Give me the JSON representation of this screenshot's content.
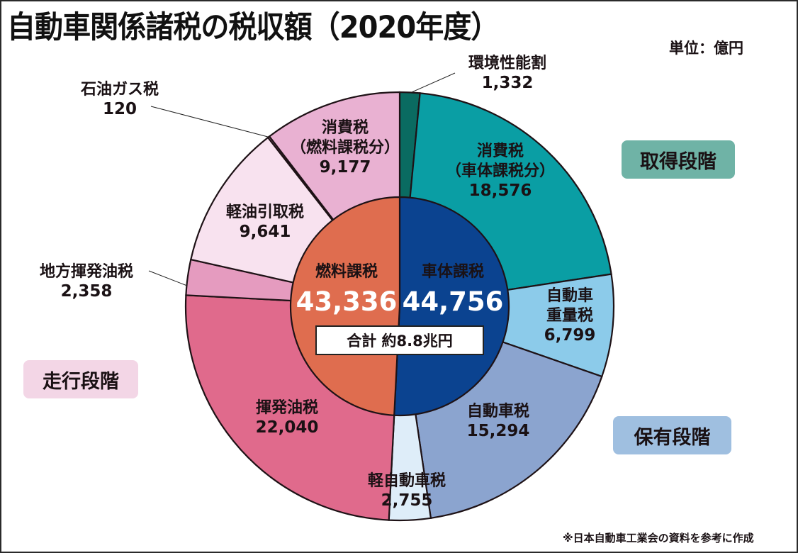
{
  "title": "自動車関係諸税の税収額（2020年度）",
  "unit": "単位：億円",
  "note": "※日本自動車工業会の資料を参考に作成",
  "stages": {
    "acquisition": "取得段階",
    "ownership": "保有段階",
    "running": "走行段階"
  },
  "total_label": "合計  約8.8兆円",
  "chart_data": {
    "type": "pie",
    "subtype": "nested-donut",
    "title": "自動車関係諸税の税収額（2020年度）",
    "unit": "億円",
    "inner": [
      {
        "name": "車体課税",
        "value": 44756,
        "value_label": "44,756",
        "color": "#0b4390"
      },
      {
        "name": "燃料課税",
        "value": 43336,
        "value_label": "43,336",
        "color": "#df6d4f"
      }
    ],
    "outer": [
      {
        "name": "環境性能割",
        "lines": [
          "環境性能割"
        ],
        "value": 1332,
        "value_label": "1,332",
        "color": "#0a6b61",
        "group": "車体課税"
      },
      {
        "name": "消費税（車体課税分）",
        "lines": [
          "消費税",
          "（車体課税分）"
        ],
        "value": 18576,
        "value_label": "18,576",
        "color": "#0a9ea4",
        "group": "車体課税"
      },
      {
        "name": "自動車重量税",
        "lines": [
          "自動車",
          "重量税"
        ],
        "value": 6799,
        "value_label": "6,799",
        "color": "#8ccbea",
        "group": "車体課税"
      },
      {
        "name": "自動車税",
        "lines": [
          "自動車税"
        ],
        "value": 15294,
        "value_label": "15,294",
        "color": "#8ba4cf",
        "group": "車体課税"
      },
      {
        "name": "軽自動車税",
        "lines": [
          "軽自動車税"
        ],
        "value": 2755,
        "value_label": "2,755",
        "color": "#deedf9",
        "group": "車体課税"
      },
      {
        "name": "揮発油税",
        "lines": [
          "揮発油税"
        ],
        "value": 22040,
        "value_label": "22,040",
        "color": "#e06a8c",
        "group": "燃料課税"
      },
      {
        "name": "地方揮発油税",
        "lines": [
          "地方揮発油税"
        ],
        "value": 2358,
        "value_label": "2,358",
        "color": "#e59bbf",
        "group": "燃料課税"
      },
      {
        "name": "軽油引取税",
        "lines": [
          "軽油引取税"
        ],
        "value": 9641,
        "value_label": "9,641",
        "color": "#f8e2ef",
        "group": "燃料課税"
      },
      {
        "name": "石油ガス税",
        "lines": [
          "石油ガス税"
        ],
        "value": 120,
        "value_label": "120",
        "color": "#ecb0cf",
        "group": "燃料課税"
      },
      {
        "name": "消費税（燃料課税分）",
        "lines": [
          "消費税",
          "（燃料課税分）"
        ],
        "value": 9177,
        "value_label": "9,177",
        "color": "#e9b1d2",
        "group": "燃料課税"
      }
    ],
    "total": 88092,
    "legend": "none"
  }
}
